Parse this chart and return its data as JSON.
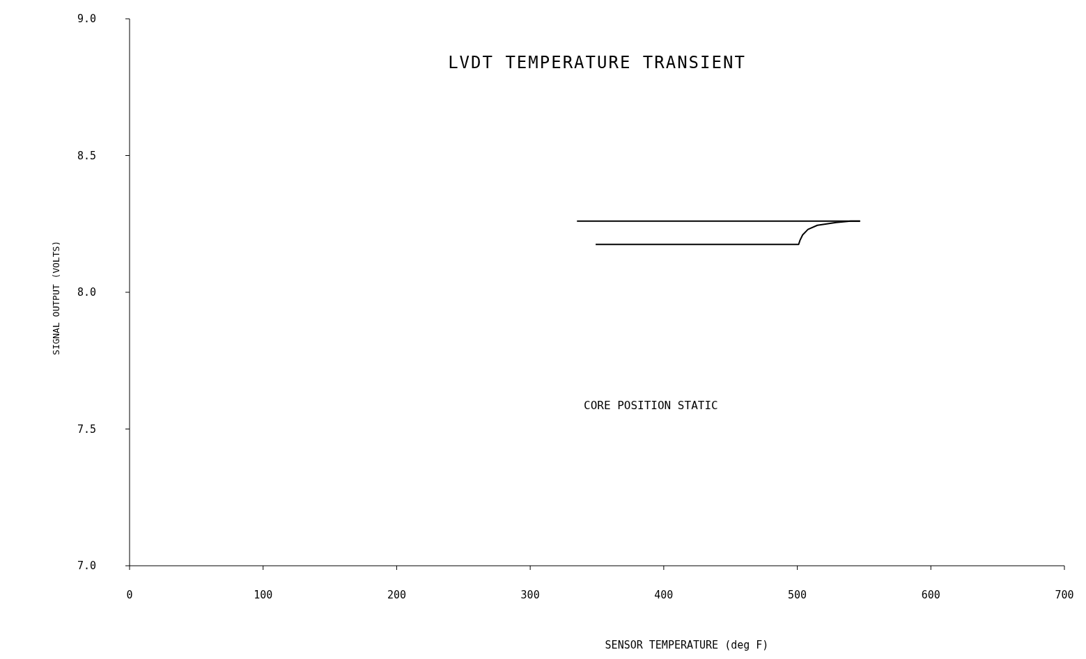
{
  "chart_data": {
    "type": "line",
    "title": "LVDT TEMPERATURE TRANSIENT",
    "xlabel": "SENSOR TEMPERATURE (deg F)",
    "ylabel": "SIGNAL OUTPUT (VOLTS)",
    "annotations": [
      "CORE POSITION STATIC"
    ],
    "series": [
      {
        "color": "#000000",
        "x": [
          335,
          400,
          450,
          500,
          547
        ],
        "values": [
          8.26,
          8.26,
          8.26,
          8.26,
          8.26
        ]
      },
      {
        "color": "#000000",
        "x": [
          349,
          400,
          450,
          501,
          502,
          504,
          508,
          515,
          529,
          540,
          547
        ],
        "values": [
          8.175,
          8.175,
          8.175,
          8.175,
          8.19,
          8.21,
          8.23,
          8.245,
          8.255,
          8.26,
          8.26
        ]
      }
    ],
    "xlim": [
      0,
      700
    ],
    "xticks": [
      0,
      100,
      200,
      300,
      400,
      500,
      600,
      700
    ],
    "ylim": [
      7,
      9
    ],
    "yticks": [
      {
        "value": 7,
        "label": "7.0"
      },
      {
        "value": 7.5,
        "label": "7.5"
      },
      {
        "value": 8,
        "label": "8.0"
      },
      {
        "value": 8.5,
        "label": "8.5"
      },
      {
        "value": 9,
        "label": "9.0"
      }
    ],
    "grid": false,
    "marker": "none",
    "line_style": "solid"
  }
}
